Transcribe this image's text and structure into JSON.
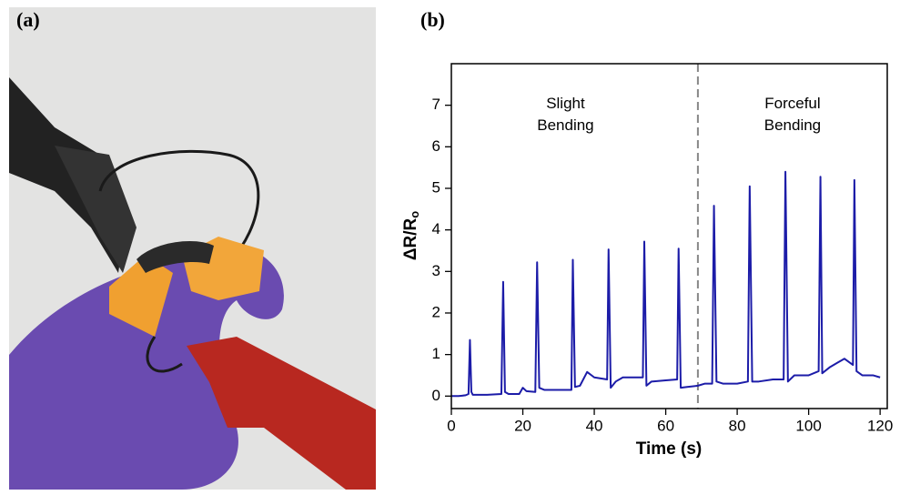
{
  "panel_a": {
    "label": "(a)"
  },
  "chart_data": {
    "type": "line",
    "panel_label": "(b)",
    "x_label": "Time (s)",
    "y_label": [
      "ΔR/R",
      "o"
    ],
    "x": [
      0,
      2,
      4,
      4.8,
      5.2,
      5.6,
      6,
      10,
      14,
      14.5,
      15,
      16,
      19,
      20,
      21,
      23.5,
      24,
      24.6,
      26,
      30,
      33.6,
      34,
      34.6,
      36,
      38,
      40,
      43.6,
      44,
      44.6,
      46,
      48,
      52,
      53.6,
      54,
      54.6,
      56,
      60,
      63.2,
      63.6,
      64.2,
      66,
      69,
      71,
      73,
      73.5,
      74.2,
      76,
      80,
      83,
      83.5,
      84.2,
      86,
      90,
      93,
      93.5,
      94.2,
      96,
      100,
      102.8,
      103.3,
      103.8,
      106,
      108,
      110,
      112.4,
      112.8,
      113.4,
      115,
      118,
      120
    ],
    "values": [
      0,
      0,
      0.02,
      0.05,
      1.35,
      0.1,
      0.03,
      0.03,
      0.05,
      2.75,
      0.1,
      0.05,
      0.05,
      0.2,
      0.12,
      0.1,
      3.22,
      0.2,
      0.15,
      0.15,
      0.15,
      3.28,
      0.22,
      0.25,
      0.58,
      0.45,
      0.4,
      3.53,
      0.2,
      0.35,
      0.45,
      0.45,
      0.45,
      3.72,
      0.25,
      0.35,
      0.38,
      0.4,
      3.55,
      0.2,
      0.22,
      0.25,
      0.3,
      0.3,
      4.58,
      0.35,
      0.3,
      0.3,
      0.35,
      5.05,
      0.35,
      0.35,
      0.4,
      0.4,
      5.4,
      0.35,
      0.5,
      0.5,
      0.6,
      5.28,
      0.55,
      0.7,
      0.8,
      0.9,
      0.75,
      5.2,
      0.6,
      0.5,
      0.5,
      0.45
    ],
    "color": "#1c1ca8",
    "xlim": [
      0,
      122
    ],
    "ylim": [
      -0.3,
      8
    ],
    "xticks": [
      0,
      20,
      40,
      60,
      80,
      100,
      120
    ],
    "yticks": [
      0,
      1,
      2,
      3,
      4,
      5,
      6,
      7
    ],
    "divider_x": 69,
    "annotations": [
      {
        "lines": [
          "Slight",
          "Bending"
        ]
      },
      {
        "lines": [
          "Forceful",
          "Bending"
        ]
      }
    ]
  }
}
